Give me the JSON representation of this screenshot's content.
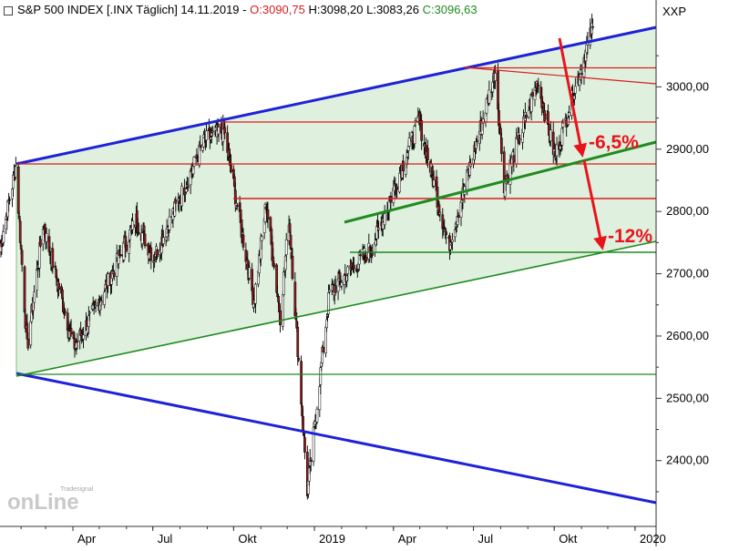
{
  "header": {
    "title": "S&P 500 INDEX [.INX  Täglich] 14.11.2019",
    "open_label": "O:3090,75",
    "high_label": "H:3098,20",
    "low_label": "L:3083,26",
    "close_label": "C:3096,63",
    "symbol": "XXP"
  },
  "watermark": {
    "line1": "Tradesignal",
    "line2": "onLine"
  },
  "colors": {
    "channel_upper": "#1e22d6",
    "channel_lower": "#1e22d6",
    "support": "#1f8a1f",
    "resistance": "#d81e1e",
    "candle_up": "#ffffff",
    "candle_down": "#8b1a1a",
    "channel_fill": "#dff0de",
    "arrow": "#e8141b",
    "close_value": "#1f8a1f",
    "open_value": "#d81e1e"
  },
  "chart_data": {
    "type": "candlestick",
    "title": "S&P 500 INDEX [.INX  Täglich] 14.11.2019",
    "ylim": [
      2320,
      3100
    ],
    "y_ticks": [
      "2400,00",
      "2500,00",
      "2600,00",
      "2700,00",
      "2800,00",
      "2900,00",
      "3000,00"
    ],
    "y_tick_values": [
      2400,
      2500,
      2600,
      2700,
      2800,
      2900,
      3000
    ],
    "x_ticks": [
      "Apr",
      "Jul",
      "Okt",
      "2019",
      "Apr",
      "Jul",
      "Okt",
      "2020"
    ],
    "x_tick_dates": [
      "2018-04-01",
      "2018-07-01",
      "2018-10-01",
      "2019-01-01",
      "2019-04-01",
      "2019-07-01",
      "2019-10-01",
      "2020-01-01"
    ],
    "x_range": [
      "2018-01-08",
      "2020-01-25"
    ],
    "series_anchor_points": [
      {
        "date": "2018-01-08",
        "close": 2740
      },
      {
        "date": "2018-01-26",
        "close": 2872
      },
      {
        "date": "2018-02-08",
        "close": 2581
      },
      {
        "date": "2018-02-26",
        "close": 2779
      },
      {
        "date": "2018-04-02",
        "close": 2582
      },
      {
        "date": "2018-05-01",
        "close": 2655
      },
      {
        "date": "2018-06-12",
        "close": 2786
      },
      {
        "date": "2018-07-02",
        "close": 2725
      },
      {
        "date": "2018-08-29",
        "close": 2914
      },
      {
        "date": "2018-09-20",
        "close": 2930
      },
      {
        "date": "2018-10-24",
        "close": 2656
      },
      {
        "date": "2018-11-07",
        "close": 2813
      },
      {
        "date": "2018-11-23",
        "close": 2632
      },
      {
        "date": "2018-12-03",
        "close": 2790
      },
      {
        "date": "2018-12-24",
        "close": 2351
      },
      {
        "date": "2019-01-18",
        "close": 2670
      },
      {
        "date": "2019-03-08",
        "close": 2743
      },
      {
        "date": "2019-04-30",
        "close": 2946
      },
      {
        "date": "2019-06-03",
        "close": 2744
      },
      {
        "date": "2019-07-26",
        "close": 3025
      },
      {
        "date": "2019-08-05",
        "close": 2844
      },
      {
        "date": "2019-09-12",
        "close": 3009
      },
      {
        "date": "2019-10-02",
        "close": 2887
      },
      {
        "date": "2019-11-14",
        "close": 3096
      }
    ],
    "annotations": [
      {
        "text": "-6,5%",
        "target": 2880
      },
      {
        "text": "-12%",
        "target": 2732
      }
    ]
  }
}
